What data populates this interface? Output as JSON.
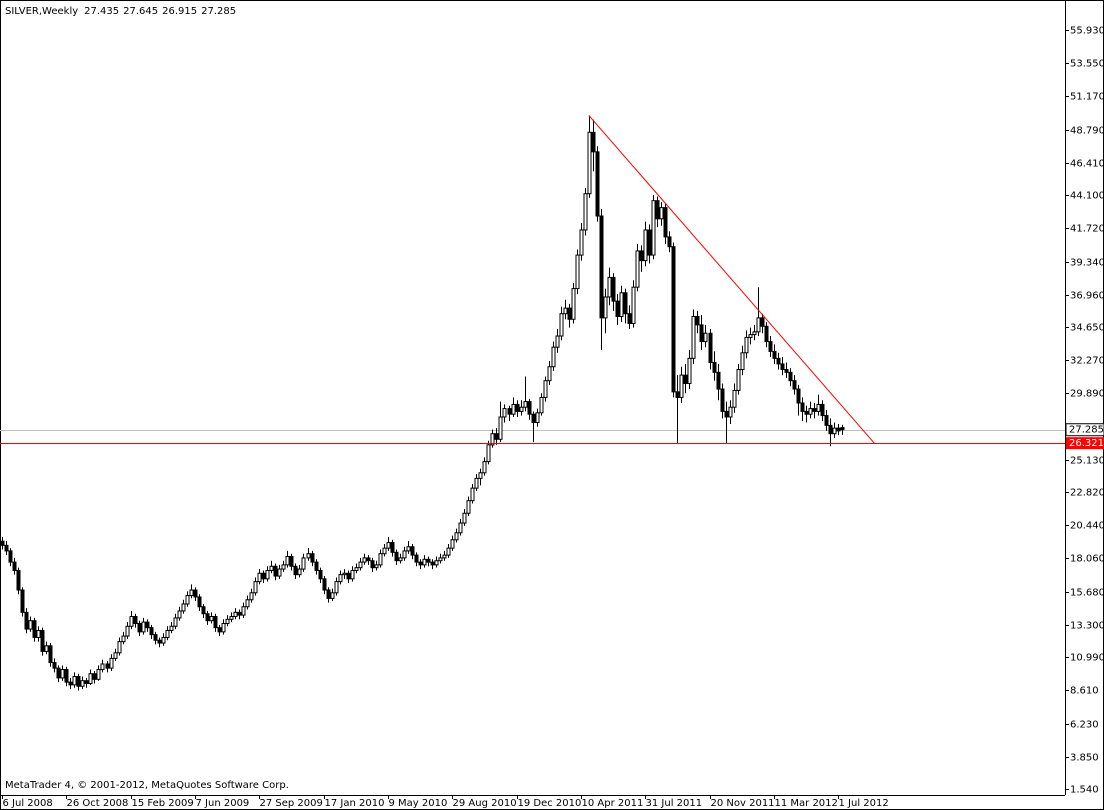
{
  "chart_data": {
    "type": "candlestick",
    "title": "SILVER,Weekly",
    "footer": "MetaTrader 4, © 2001-2012, MetaQuotes Software Corp.",
    "categories": [
      "6 Jul 2008",
      null,
      null,
      null,
      null,
      null,
      null,
      null,
      null,
      null,
      null,
      null,
      null,
      null,
      null,
      null,
      "26 Oct 2008",
      null,
      null,
      null,
      null,
      null,
      null,
      null,
      null,
      null,
      null,
      null,
      null,
      null,
      null,
      null,
      "15 Feb 2009",
      null,
      null,
      null,
      null,
      null,
      null,
      null,
      null,
      null,
      null,
      null,
      null,
      null,
      null,
      null,
      "7 Jun 2009",
      null,
      null,
      null,
      null,
      null,
      null,
      null,
      null,
      null,
      null,
      null,
      null,
      null,
      null,
      null,
      "27 Sep 2009",
      null,
      null,
      null,
      null,
      null,
      null,
      null,
      null,
      null,
      null,
      null,
      null,
      null,
      null,
      null,
      "17 Jan 2010",
      null,
      null,
      null,
      null,
      null,
      null,
      null,
      null,
      null,
      null,
      null,
      null,
      null,
      null,
      null,
      "9 May 2010",
      null,
      null,
      null,
      null,
      null,
      null,
      null,
      null,
      null,
      null,
      null,
      null,
      null,
      null,
      null,
      "29 Aug 2010",
      null,
      null,
      null,
      null,
      null,
      null,
      null,
      null,
      null,
      null,
      null,
      null,
      null,
      null,
      null,
      "19 Dec 2010",
      null,
      null,
      null,
      null,
      null,
      null,
      null,
      null,
      null,
      null,
      null,
      null,
      null,
      null,
      null,
      "10 Apr 2011",
      null,
      null,
      null,
      null,
      null,
      null,
      null,
      null,
      null,
      null,
      null,
      null,
      null,
      null,
      null,
      "31 Jul 2011",
      null,
      null,
      null,
      null,
      null,
      null,
      null,
      null,
      null,
      null,
      null,
      null,
      null,
      null,
      null,
      "20 Nov 2011",
      null,
      null,
      null,
      null,
      null,
      null,
      null,
      null,
      null,
      null,
      null,
      null,
      null,
      null,
      null,
      "11 Mar 2012",
      null,
      null,
      null,
      null,
      null,
      null,
      null,
      null,
      null,
      null,
      null,
      null,
      null,
      null,
      null,
      "1 Jul 2012",
      null
    ],
    "candles": [
      [
        19.3,
        19.6,
        18.7,
        19.0
      ],
      [
        19.0,
        19.3,
        18.3,
        18.6
      ],
      [
        18.6,
        18.8,
        17.5,
        17.8
      ],
      [
        17.8,
        18.1,
        16.9,
        17.2
      ],
      [
        17.2,
        17.4,
        15.5,
        15.8
      ],
      [
        15.8,
        16.0,
        13.9,
        14.2
      ],
      [
        14.2,
        14.5,
        12.7,
        13.0
      ],
      [
        13.0,
        13.9,
        12.8,
        13.6
      ],
      [
        13.6,
        13.8,
        12.1,
        12.4
      ],
      [
        12.4,
        13.2,
        12.1,
        12.9
      ],
      [
        12.9,
        13.1,
        11.1,
        11.4
      ],
      [
        11.4,
        12.1,
        11.2,
        11.8
      ],
      [
        11.8,
        12.0,
        10.3,
        10.6
      ],
      [
        10.6,
        10.9,
        9.9,
        10.2
      ],
      [
        10.2,
        10.4,
        9.2,
        9.5
      ],
      [
        9.5,
        10.4,
        9.3,
        10.1
      ],
      [
        10.1,
        10.3,
        8.9,
        9.2
      ],
      [
        9.2,
        9.5,
        8.7,
        9.0
      ],
      [
        9.0,
        9.9,
        8.8,
        9.6
      ],
      [
        9.6,
        9.8,
        8.6,
        8.9
      ],
      [
        8.9,
        9.6,
        8.7,
        9.3
      ],
      [
        9.3,
        9.5,
        8.8,
        9.1
      ],
      [
        9.1,
        10.1,
        9.0,
        9.8
      ],
      [
        9.8,
        10.0,
        9.1,
        9.4
      ],
      [
        9.4,
        10.4,
        9.3,
        10.1
      ],
      [
        10.1,
        10.8,
        9.9,
        10.5
      ],
      [
        10.5,
        10.7,
        9.9,
        10.2
      ],
      [
        10.2,
        11.2,
        10.0,
        10.9
      ],
      [
        10.9,
        11.6,
        10.7,
        11.3
      ],
      [
        11.3,
        12.4,
        11.1,
        12.1
      ],
      [
        12.1,
        12.8,
        11.9,
        12.5
      ],
      [
        12.5,
        13.5,
        12.3,
        13.2
      ],
      [
        13.2,
        14.3,
        13.0,
        13.9
      ],
      [
        13.9,
        14.1,
        13.1,
        13.4
      ],
      [
        13.4,
        13.6,
        12.5,
        12.8
      ],
      [
        12.8,
        13.8,
        12.6,
        13.5
      ],
      [
        13.5,
        13.7,
        12.8,
        13.1
      ],
      [
        13.1,
        13.3,
        12.3,
        12.6
      ],
      [
        12.6,
        12.8,
        11.9,
        12.2
      ],
      [
        12.2,
        12.4,
        11.7,
        12.0
      ],
      [
        12.0,
        12.7,
        11.8,
        12.4
      ],
      [
        12.4,
        13.2,
        12.2,
        12.9
      ],
      [
        12.9,
        13.5,
        12.7,
        13.2
      ],
      [
        13.2,
        14.1,
        13.0,
        13.8
      ],
      [
        13.8,
        14.6,
        13.6,
        14.3
      ],
      [
        14.3,
        15.1,
        14.1,
        14.8
      ],
      [
        14.8,
        15.7,
        14.6,
        15.4
      ],
      [
        15.4,
        16.2,
        15.2,
        15.8
      ],
      [
        15.8,
        16.0,
        15.0,
        15.3
      ],
      [
        15.3,
        15.5,
        14.3,
        14.6
      ],
      [
        14.6,
        14.8,
        13.8,
        14.1
      ],
      [
        14.1,
        14.3,
        13.3,
        13.6
      ],
      [
        13.6,
        14.2,
        13.4,
        13.9
      ],
      [
        13.9,
        14.1,
        12.8,
        13.1
      ],
      [
        13.1,
        13.3,
        12.5,
        12.8
      ],
      [
        12.8,
        13.7,
        12.6,
        13.4
      ],
      [
        13.4,
        14.0,
        13.2,
        13.7
      ],
      [
        13.7,
        14.2,
        13.5,
        13.9
      ],
      [
        13.9,
        14.5,
        13.7,
        14.2
      ],
      [
        14.2,
        14.4,
        13.7,
        14.0
      ],
      [
        14.0,
        14.9,
        13.8,
        14.6
      ],
      [
        14.6,
        15.4,
        14.4,
        15.1
      ],
      [
        15.1,
        15.9,
        14.9,
        15.6
      ],
      [
        15.6,
        16.7,
        15.4,
        16.4
      ],
      [
        16.4,
        17.3,
        16.2,
        17.0
      ],
      [
        17.0,
        17.2,
        16.3,
        16.6
      ],
      [
        16.6,
        17.5,
        16.4,
        17.2
      ],
      [
        17.2,
        17.9,
        17.0,
        17.5
      ],
      [
        17.5,
        17.7,
        16.5,
        16.8
      ],
      [
        16.8,
        17.6,
        16.6,
        17.3
      ],
      [
        17.3,
        17.9,
        17.1,
        17.6
      ],
      [
        17.6,
        18.6,
        17.4,
        18.2
      ],
      [
        18.2,
        18.4,
        17.2,
        17.5
      ],
      [
        17.5,
        17.7,
        16.6,
        16.9
      ],
      [
        16.9,
        17.6,
        16.7,
        17.3
      ],
      [
        17.3,
        18.4,
        17.1,
        18.1
      ],
      [
        18.1,
        18.8,
        17.9,
        18.4
      ],
      [
        18.4,
        18.6,
        17.5,
        17.8
      ],
      [
        17.8,
        18.0,
        16.9,
        17.2
      ],
      [
        17.2,
        17.4,
        16.3,
        16.6
      ],
      [
        16.6,
        16.8,
        15.5,
        15.8
      ],
      [
        15.8,
        16.0,
        14.9,
        15.2
      ],
      [
        15.2,
        15.9,
        15.0,
        15.6
      ],
      [
        15.6,
        16.7,
        15.4,
        16.4
      ],
      [
        16.4,
        17.2,
        16.2,
        16.9
      ],
      [
        16.9,
        17.3,
        16.6,
        17.0
      ],
      [
        17.0,
        17.2,
        16.3,
        16.6
      ],
      [
        16.6,
        17.5,
        16.4,
        17.2
      ],
      [
        17.2,
        17.7,
        17.0,
        17.4
      ],
      [
        17.4,
        18.1,
        17.2,
        17.8
      ],
      [
        17.8,
        18.4,
        17.6,
        18.1
      ],
      [
        18.1,
        18.3,
        17.6,
        17.9
      ],
      [
        17.9,
        18.1,
        17.1,
        17.4
      ],
      [
        17.4,
        17.9,
        17.2,
        17.6
      ],
      [
        17.6,
        18.7,
        17.4,
        18.4
      ],
      [
        18.4,
        19.1,
        18.2,
        18.8
      ],
      [
        18.8,
        19.6,
        18.6,
        19.2
      ],
      [
        19.2,
        19.4,
        18.2,
        18.5
      ],
      [
        18.5,
        18.7,
        17.6,
        17.9
      ],
      [
        17.9,
        18.4,
        17.7,
        18.1
      ],
      [
        18.1,
        18.9,
        17.9,
        18.6
      ],
      [
        18.6,
        19.3,
        18.4,
        18.9
      ],
      [
        18.9,
        19.1,
        18.0,
        18.3
      ],
      [
        18.3,
        18.5,
        17.5,
        17.8
      ],
      [
        17.8,
        18.0,
        17.3,
        17.6
      ],
      [
        17.6,
        18.3,
        17.4,
        18.0
      ],
      [
        18.0,
        18.2,
        17.5,
        17.8
      ],
      [
        17.8,
        18.0,
        17.3,
        17.6
      ],
      [
        17.6,
        18.2,
        17.4,
        17.9
      ],
      [
        17.9,
        18.4,
        17.7,
        18.1
      ],
      [
        18.1,
        18.6,
        17.9,
        18.3
      ],
      [
        18.3,
        19.1,
        18.1,
        18.8
      ],
      [
        18.8,
        19.7,
        18.6,
        19.4
      ],
      [
        19.4,
        20.2,
        19.2,
        19.9
      ],
      [
        19.9,
        20.9,
        19.7,
        20.6
      ],
      [
        20.6,
        21.6,
        20.4,
        21.3
      ],
      [
        21.3,
        22.5,
        21.1,
        22.2
      ],
      [
        22.2,
        23.4,
        22.0,
        23.1
      ],
      [
        23.1,
        24.1,
        22.9,
        23.8
      ],
      [
        23.8,
        24.5,
        23.3,
        24.2
      ],
      [
        24.2,
        25.3,
        24.0,
        25.0
      ],
      [
        25.0,
        26.5,
        24.8,
        26.2
      ],
      [
        26.2,
        27.3,
        26.0,
        27.0
      ],
      [
        27.0,
        27.4,
        26.2,
        26.6
      ],
      [
        26.6,
        29.3,
        26.4,
        28.2
      ],
      [
        28.2,
        29.1,
        27.8,
        28.8
      ],
      [
        28.8,
        29.0,
        27.9,
        28.4
      ],
      [
        28.4,
        29.6,
        28.2,
        29.1
      ],
      [
        29.1,
        29.4,
        28.2,
        28.6
      ],
      [
        28.6,
        29.4,
        28.3,
        28.9
      ],
      [
        28.9,
        31.1,
        28.6,
        29.3
      ],
      [
        29.3,
        29.5,
        28.0,
        28.4
      ],
      [
        28.4,
        28.6,
        26.4,
        27.8
      ],
      [
        27.8,
        28.8,
        27.5,
        28.5
      ],
      [
        28.5,
        29.9,
        28.3,
        29.6
      ],
      [
        29.6,
        31.1,
        29.3,
        30.8
      ],
      [
        30.8,
        32.2,
        30.5,
        31.8
      ],
      [
        31.8,
        33.6,
        31.5,
        33.2
      ],
      [
        33.2,
        34.5,
        32.8,
        34.0
      ],
      [
        34.0,
        36.1,
        33.7,
        35.6
      ],
      [
        35.6,
        36.6,
        35.2,
        36.0
      ],
      [
        36.0,
        36.3,
        34.6,
        35.2
      ],
      [
        35.2,
        37.8,
        34.9,
        37.4
      ],
      [
        37.4,
        40.2,
        37.0,
        39.8
      ],
      [
        39.8,
        42.1,
        39.4,
        41.6
      ],
      [
        41.6,
        44.6,
        41.2,
        44.2
      ],
      [
        44.2,
        49.8,
        43.9,
        48.6
      ],
      [
        48.6,
        49.5,
        45.8,
        47.2
      ],
      [
        47.2,
        47.6,
        42.2,
        42.6
      ],
      [
        42.6,
        43.1,
        33.0,
        35.3
      ],
      [
        35.3,
        37.4,
        34.2,
        36.8
      ],
      [
        36.8,
        38.9,
        36.2,
        38.2
      ],
      [
        38.2,
        38.5,
        35.8,
        36.5
      ],
      [
        36.5,
        37.0,
        34.8,
        35.4
      ],
      [
        35.4,
        37.6,
        35.0,
        37.1
      ],
      [
        37.1,
        37.4,
        34.9,
        35.6
      ],
      [
        35.6,
        36.2,
        34.5,
        34.9
      ],
      [
        34.9,
        38.0,
        34.6,
        37.5
      ],
      [
        37.5,
        40.6,
        37.2,
        40.1
      ],
      [
        40.1,
        40.5,
        38.6,
        39.4
      ],
      [
        39.4,
        42.2,
        39.0,
        41.6
      ],
      [
        41.6,
        42.0,
        39.2,
        39.8
      ],
      [
        39.8,
        44.1,
        39.5,
        43.7
      ],
      [
        43.7,
        44.0,
        41.8,
        42.4
      ],
      [
        42.4,
        43.6,
        41.9,
        43.2
      ],
      [
        43.2,
        43.5,
        40.6,
        41.1
      ],
      [
        41.1,
        41.5,
        40.0,
        40.4
      ],
      [
        40.4,
        40.7,
        29.6,
        30.0
      ],
      [
        30.0,
        31.2,
        26.3,
        29.6
      ],
      [
        29.6,
        31.8,
        29.2,
        31.2
      ],
      [
        31.2,
        32.0,
        29.9,
        30.6
      ],
      [
        30.6,
        33.0,
        30.2,
        32.4
      ],
      [
        32.4,
        35.9,
        32.0,
        35.4
      ],
      [
        35.4,
        35.8,
        34.2,
        34.8
      ],
      [
        34.8,
        35.5,
        33.0,
        33.6
      ],
      [
        33.6,
        34.8,
        33.2,
        34.2
      ],
      [
        34.2,
        34.5,
        31.6,
        32.1
      ],
      [
        32.1,
        32.9,
        30.8,
        31.4
      ],
      [
        31.4,
        32.0,
        29.4,
        30.2
      ],
      [
        30.2,
        30.6,
        28.1,
        28.6
      ],
      [
        28.6,
        29.3,
        26.3,
        28.2
      ],
      [
        28.2,
        29.4,
        27.7,
        28.9
      ],
      [
        28.9,
        30.6,
        28.5,
        30.1
      ],
      [
        30.1,
        32.0,
        29.8,
        31.6
      ],
      [
        31.6,
        33.3,
        31.2,
        32.8
      ],
      [
        32.8,
        34.4,
        32.4,
        33.9
      ],
      [
        33.9,
        34.6,
        33.4,
        34.1
      ],
      [
        34.1,
        34.8,
        33.7,
        34.3
      ],
      [
        34.3,
        37.5,
        34.0,
        35.3
      ],
      [
        35.3,
        35.6,
        34.2,
        34.7
      ],
      [
        34.7,
        35.0,
        33.2,
        33.6
      ],
      [
        33.6,
        34.0,
        32.5,
        32.9
      ],
      [
        32.9,
        33.4,
        32.0,
        32.4
      ],
      [
        32.4,
        32.8,
        31.6,
        32.0
      ],
      [
        32.0,
        32.5,
        31.2,
        31.6
      ],
      [
        31.6,
        32.1,
        31.0,
        31.4
      ],
      [
        31.4,
        31.7,
        30.4,
        30.8
      ],
      [
        30.8,
        31.2,
        29.8,
        30.2
      ],
      [
        30.2,
        30.5,
        28.3,
        29.2
      ],
      [
        29.2,
        29.6,
        27.9,
        28.6
      ],
      [
        28.6,
        29.0,
        27.8,
        28.4
      ],
      [
        28.4,
        29.3,
        28.1,
        28.8
      ],
      [
        28.8,
        29.2,
        28.1,
        28.6
      ],
      [
        28.6,
        29.8,
        28.3,
        29.1
      ],
      [
        29.1,
        29.4,
        27.9,
        28.3
      ],
      [
        28.3,
        28.7,
        27.2,
        27.6
      ],
      [
        27.6,
        28.1,
        26.1,
        27.0
      ],
      [
        27.0,
        27.8,
        26.7,
        27.4
      ],
      [
        27.4,
        27.7,
        26.9,
        27.2
      ],
      [
        27.435,
        27.645,
        26.915,
        27.285
      ]
    ],
    "ylim": [
      1.11,
      58.08
    ],
    "yticks": [
      {
        "value": 55.93,
        "label": "55.930"
      },
      {
        "value": 53.55,
        "label": "53.550"
      },
      {
        "value": 51.17,
        "label": "51.170"
      },
      {
        "value": 48.79,
        "label": "48.790"
      },
      {
        "value": 46.41,
        "label": "46.410"
      },
      {
        "value": 44.1,
        "label": "44.100"
      },
      {
        "value": 41.72,
        "label": "41.720"
      },
      {
        "value": 39.34,
        "label": "39.340"
      },
      {
        "value": 36.96,
        "label": "36.960"
      },
      {
        "value": 34.65,
        "label": "34.650"
      },
      {
        "value": 32.27,
        "label": "32.270"
      },
      {
        "value": 29.89,
        "label": "29.890"
      },
      {
        "value": 25.13,
        "label": "25.130"
      },
      {
        "value": 22.82,
        "label": "22.820"
      },
      {
        "value": 20.44,
        "label": "20.440"
      },
      {
        "value": 18.06,
        "label": "18.060"
      },
      {
        "value": 15.68,
        "label": "15.680"
      },
      {
        "value": 13.3,
        "label": "13.300"
      },
      {
        "value": 10.99,
        "label": "10.990"
      },
      {
        "value": 8.61,
        "label": "8.610"
      },
      {
        "value": 6.23,
        "label": "6.230"
      },
      {
        "value": 3.85,
        "label": "3.850"
      },
      {
        "value": 1.54,
        "label": "1.540"
      }
    ],
    "price_line": {
      "value": 27.285,
      "color": "#c0c0c0"
    },
    "support_line": {
      "value": 26.321,
      "color": "#ff0000"
    },
    "trendline": {
      "x": [
        146,
        217
      ],
      "y": [
        49.8,
        26.321
      ],
      "color": "#ff0000"
    },
    "up_color": "#ffffff",
    "down_color": "#000000"
  }
}
